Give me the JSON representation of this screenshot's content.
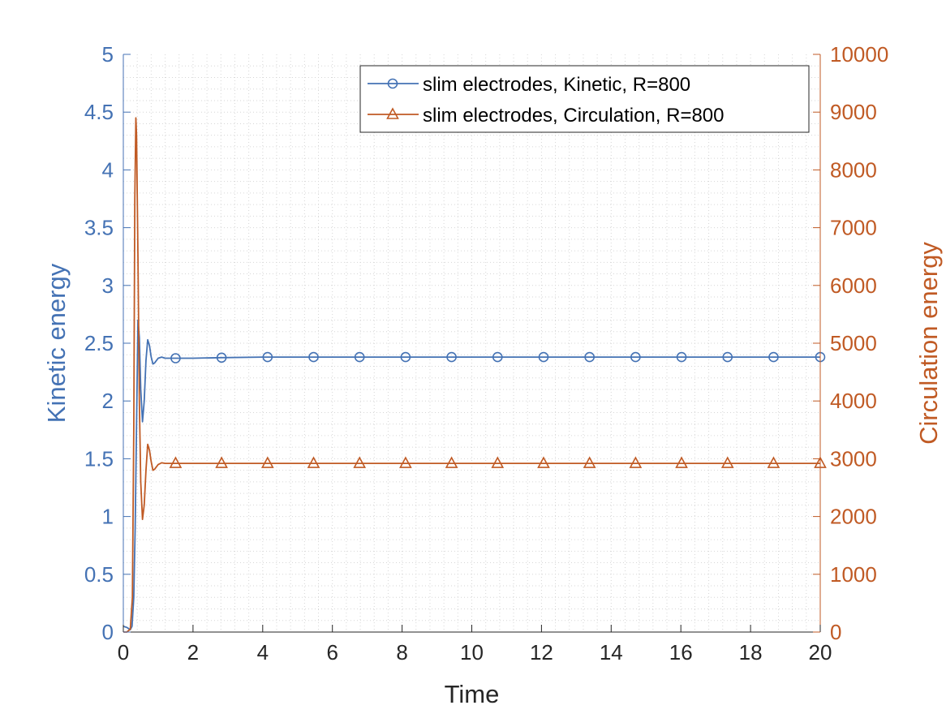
{
  "chart_data": {
    "type": "line",
    "xlabel": "Time",
    "ylabel_left": "Kinetic energy",
    "ylabel_right": "Circulation energy",
    "xlim": [
      0,
      20
    ],
    "ylim_left": [
      0,
      5
    ],
    "ylim_right": [
      0,
      10000
    ],
    "x_ticks": [
      0,
      2,
      4,
      6,
      8,
      10,
      12,
      14,
      16,
      18,
      20
    ],
    "y_left_ticks": [
      0,
      0.5,
      1,
      1.5,
      2,
      2.5,
      3,
      3.5,
      4,
      4.5,
      5
    ],
    "y_right_ticks": [
      0,
      1000,
      2000,
      3000,
      4000,
      5000,
      6000,
      7000,
      8000,
      9000,
      10000
    ],
    "grid": "minor dotted",
    "legend_position": "top-right",
    "colors": {
      "left": "#4472b4",
      "right": "#c05a24",
      "axis_text": "#262626"
    },
    "series": [
      {
        "name": "slim electrodes, Kinetic, R=800",
        "axis": "left",
        "color": "#4472b4",
        "marker": "circle",
        "x": [
          0,
          0.1,
          0.2,
          0.25,
          0.3,
          0.34,
          0.38,
          0.42,
          0.46,
          0.5,
          0.55,
          0.6,
          0.65,
          0.7,
          0.75,
          0.8,
          0.85,
          0.9,
          1.0,
          1.1,
          1.2,
          1.3,
          1.5,
          2.0,
          2.8,
          4.0,
          5.0,
          20.0
        ],
        "values": [
          0.05,
          0.04,
          0.02,
          0.05,
          0.3,
          0.9,
          1.8,
          2.7,
          2.55,
          2.1,
          1.82,
          2.0,
          2.35,
          2.53,
          2.48,
          2.38,
          2.32,
          2.33,
          2.37,
          2.38,
          2.37,
          2.37,
          2.37,
          2.37,
          2.375,
          2.38,
          2.38,
          2.38
        ],
        "marker_x": [
          1.5,
          2.82,
          4.14,
          5.46,
          6.78,
          8.1,
          9.42,
          10.74,
          12.06,
          13.38,
          14.7,
          16.02,
          17.34,
          18.66,
          20.0
        ],
        "marker_values": [
          2.37,
          2.375,
          2.38,
          2.38,
          2.38,
          2.38,
          2.38,
          2.38,
          2.38,
          2.38,
          2.38,
          2.38,
          2.38,
          2.38,
          2.38
        ]
      },
      {
        "name": "slim electrodes, Circulation, R=800",
        "axis": "right",
        "color": "#c05a24",
        "marker": "triangle",
        "x": [
          0,
          0.1,
          0.2,
          0.26,
          0.3,
          0.33,
          0.36,
          0.38,
          0.42,
          0.46,
          0.5,
          0.55,
          0.6,
          0.65,
          0.7,
          0.75,
          0.8,
          0.85,
          0.9,
          1.0,
          1.1,
          1.2,
          1.5,
          2.0,
          20.0
        ],
        "values": [
          0,
          0,
          50,
          600,
          3500,
          7500,
          8900,
          8600,
          6500,
          4000,
          2600,
          1950,
          2200,
          2800,
          3250,
          3150,
          2950,
          2800,
          2820,
          2900,
          2930,
          2920,
          2920,
          2920,
          2920
        ],
        "marker_x": [
          1.5,
          2.82,
          4.14,
          5.46,
          6.78,
          8.1,
          9.42,
          10.74,
          12.06,
          13.38,
          14.7,
          16.02,
          17.34,
          18.66,
          20.0
        ],
        "marker_values": [
          2920,
          2920,
          2920,
          2920,
          2920,
          2920,
          2920,
          2920,
          2920,
          2920,
          2920,
          2920,
          2920,
          2920,
          2920
        ]
      }
    ]
  }
}
